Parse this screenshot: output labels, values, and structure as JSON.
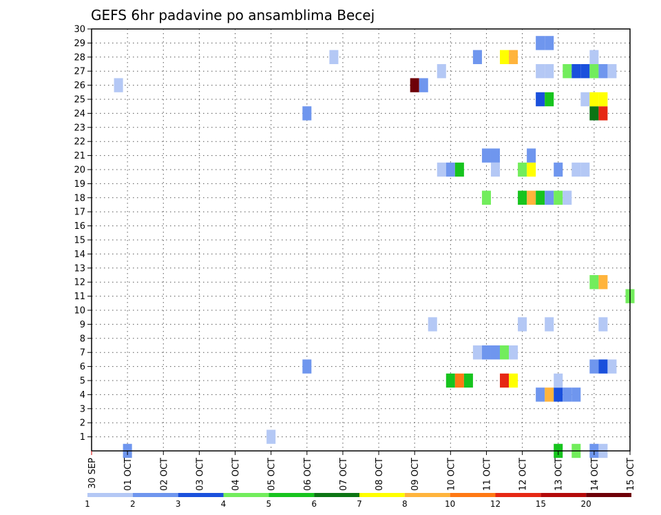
{
  "chart_data": {
    "type": "heatmap",
    "title": "GEFS 6hr padavine po ansamblima Becej",
    "xlabel": "",
    "ylabel": "",
    "x_ticks": [
      "30 SEP",
      "01 OCT",
      "02 OCT",
      "03 OCT",
      "04 OCT",
      "05 OCT",
      "06 OCT",
      "07 OCT",
      "08 OCT",
      "09 OCT",
      "10 OCT",
      "11 OCT",
      "12 OCT",
      "13 OCT",
      "14 OCT",
      "15 OCT"
    ],
    "y_ticks": [
      1,
      2,
      3,
      4,
      5,
      6,
      7,
      8,
      9,
      10,
      11,
      12,
      13,
      14,
      15,
      16,
      17,
      18,
      19,
      20,
      21,
      22,
      23,
      24,
      25,
      26,
      27,
      28,
      29,
      30
    ],
    "x_range_days": [
      0,
      15
    ],
    "y_range": [
      0,
      30
    ],
    "time_step_hours": 6,
    "grid": true,
    "colorbar": {
      "levels": [
        "1",
        "2",
        "3",
        "4",
        "5",
        "6",
        "7",
        "8",
        "10",
        "12",
        "15",
        "20"
      ],
      "colors": [
        "#b4c8f5",
        "#6f96ee",
        "#1a50dc",
        "#72ed5c",
        "#17c41e",
        "#0c7514",
        "#ffff00",
        "#ffb43c",
        "#ff7814",
        "#e62814",
        "#b40a0a",
        "#6e0008"
      ]
    },
    "cells": [
      {
        "member": 0,
        "day": 1.0,
        "color": "#6f96ee"
      },
      {
        "member": 0,
        "day": 13.0,
        "color": "#17c41e"
      },
      {
        "member": 0,
        "day": 13.5,
        "color": "#72ed5c"
      },
      {
        "member": 0,
        "day": 14.0,
        "color": "#6f96ee"
      },
      {
        "member": 0,
        "day": 14.25,
        "color": "#b4c8f5"
      },
      {
        "member": 1,
        "day": 5.0,
        "color": "#b4c8f5"
      },
      {
        "member": 4,
        "day": 12.5,
        "color": "#6f96ee"
      },
      {
        "member": 4,
        "day": 12.75,
        "color": "#ffb43c"
      },
      {
        "member": 4,
        "day": 13.0,
        "color": "#1a50dc"
      },
      {
        "member": 4,
        "day": 13.25,
        "color": "#6f96ee"
      },
      {
        "member": 4,
        "day": 13.5,
        "color": "#6f96ee"
      },
      {
        "member": 5,
        "day": 10.0,
        "color": "#17c41e"
      },
      {
        "member": 5,
        "day": 10.25,
        "color": "#ff7814"
      },
      {
        "member": 5,
        "day": 10.5,
        "color": "#17c41e"
      },
      {
        "member": 5,
        "day": 11.5,
        "color": "#e62814"
      },
      {
        "member": 5,
        "day": 11.75,
        "color": "#ffff00"
      },
      {
        "member": 5,
        "day": 13.0,
        "color": "#b4c8f5"
      },
      {
        "member": 6,
        "day": 6.0,
        "color": "#6f96ee"
      },
      {
        "member": 6,
        "day": 14.0,
        "color": "#6f96ee"
      },
      {
        "member": 6,
        "day": 14.25,
        "color": "#1a50dc"
      },
      {
        "member": 6,
        "day": 14.5,
        "color": "#b4c8f5"
      },
      {
        "member": 7,
        "day": 10.75,
        "color": "#b4c8f5"
      },
      {
        "member": 7,
        "day": 11.0,
        "color": "#6f96ee"
      },
      {
        "member": 7,
        "day": 11.25,
        "color": "#6f96ee"
      },
      {
        "member": 7,
        "day": 11.5,
        "color": "#72ed5c"
      },
      {
        "member": 7,
        "day": 11.75,
        "color": "#b4c8f5"
      },
      {
        "member": 9,
        "day": 9.5,
        "color": "#b4c8f5"
      },
      {
        "member": 9,
        "day": 12.0,
        "color": "#b4c8f5"
      },
      {
        "member": 9,
        "day": 12.75,
        "color": "#b4c8f5"
      },
      {
        "member": 9,
        "day": 14.25,
        "color": "#b4c8f5"
      },
      {
        "member": 11,
        "day": 15.0,
        "color": "#72ed5c"
      },
      {
        "member": 12,
        "day": 14.0,
        "color": "#72ed5c"
      },
      {
        "member": 12,
        "day": 14.25,
        "color": "#ffb43c"
      },
      {
        "member": 18,
        "day": 11.0,
        "color": "#72ed5c"
      },
      {
        "member": 18,
        "day": 12.0,
        "color": "#17c41e"
      },
      {
        "member": 18,
        "day": 12.25,
        "color": "#ffb43c"
      },
      {
        "member": 18,
        "day": 12.5,
        "color": "#17c41e"
      },
      {
        "member": 18,
        "day": 12.75,
        "color": "#6f96ee"
      },
      {
        "member": 18,
        "day": 13.0,
        "color": "#72ed5c"
      },
      {
        "member": 18,
        "day": 13.25,
        "color": "#b4c8f5"
      },
      {
        "member": 20,
        "day": 9.75,
        "color": "#b4c8f5"
      },
      {
        "member": 20,
        "day": 10.0,
        "color": "#6f96ee"
      },
      {
        "member": 20,
        "day": 10.25,
        "color": "#17c41e"
      },
      {
        "member": 20,
        "day": 11.25,
        "color": "#b4c8f5"
      },
      {
        "member": 20,
        "day": 12.0,
        "color": "#72ed5c"
      },
      {
        "member": 20,
        "day": 12.25,
        "color": "#ffff00"
      },
      {
        "member": 20,
        "day": 13.0,
        "color": "#6f96ee"
      },
      {
        "member": 20,
        "day": 13.5,
        "color": "#b4c8f5"
      },
      {
        "member": 20,
        "day": 13.75,
        "color": "#b4c8f5"
      },
      {
        "member": 21,
        "day": 11.0,
        "color": "#6f96ee"
      },
      {
        "member": 21,
        "day": 11.25,
        "color": "#6f96ee"
      },
      {
        "member": 21,
        "day": 12.25,
        "color": "#6f96ee"
      },
      {
        "member": 24,
        "day": 6.0,
        "color": "#6f96ee"
      },
      {
        "member": 24,
        "day": 14.0,
        "color": "#0c7514"
      },
      {
        "member": 24,
        "day": 14.25,
        "color": "#e62814"
      },
      {
        "member": 25,
        "day": 12.5,
        "color": "#1a50dc"
      },
      {
        "member": 25,
        "day": 12.75,
        "color": "#17c41e"
      },
      {
        "member": 25,
        "day": 13.75,
        "color": "#b4c8f5"
      },
      {
        "member": 25,
        "day": 14.0,
        "color": "#ffff00"
      },
      {
        "member": 25,
        "day": 14.25,
        "color": "#ffff00"
      },
      {
        "member": 26,
        "day": 0.75,
        "color": "#b4c8f5"
      },
      {
        "member": 26,
        "day": 9.0,
        "color": "#6e0008"
      },
      {
        "member": 26,
        "day": 9.25,
        "color": "#6f96ee"
      },
      {
        "member": 27,
        "day": 9.75,
        "color": "#b4c8f5"
      },
      {
        "member": 27,
        "day": 12.5,
        "color": "#b4c8f5"
      },
      {
        "member": 27,
        "day": 12.75,
        "color": "#b4c8f5"
      },
      {
        "member": 27,
        "day": 13.25,
        "color": "#72ed5c"
      },
      {
        "member": 27,
        "day": 13.5,
        "color": "#1a50dc"
      },
      {
        "member": 27,
        "day": 13.75,
        "color": "#1a50dc"
      },
      {
        "member": 27,
        "day": 14.0,
        "color": "#72ed5c"
      },
      {
        "member": 27,
        "day": 14.25,
        "color": "#6f96ee"
      },
      {
        "member": 27,
        "day": 14.5,
        "color": "#b4c8f5"
      },
      {
        "member": 28,
        "day": 6.75,
        "color": "#b4c8f5"
      },
      {
        "member": 28,
        "day": 10.75,
        "color": "#6f96ee"
      },
      {
        "member": 28,
        "day": 11.5,
        "color": "#ffff00"
      },
      {
        "member": 28,
        "day": 11.75,
        "color": "#ffb43c"
      },
      {
        "member": 28,
        "day": 14.0,
        "color": "#b4c8f5"
      },
      {
        "member": 29,
        "day": 12.5,
        "color": "#6f96ee"
      },
      {
        "member": 29,
        "day": 12.75,
        "color": "#6f96ee"
      }
    ]
  }
}
